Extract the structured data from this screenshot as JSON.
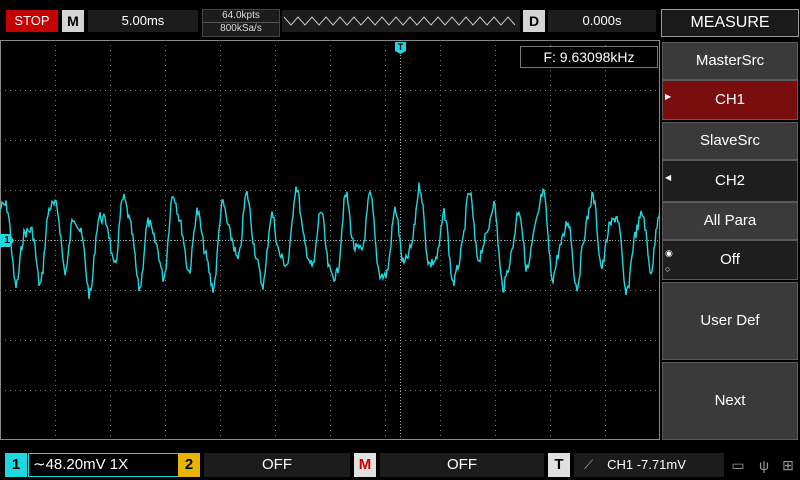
{
  "top": {
    "run_state": "STOP",
    "m_label": "M",
    "timebase": "5.00ms",
    "memory_depth": "64.0kpts",
    "sample_rate": "800kSa/s",
    "d_label": "D",
    "delay": "0.000s",
    "menu_title": "MEASURE"
  },
  "measurement": {
    "frequency": "F: 9.63098kHz"
  },
  "markers": {
    "ch1": "1",
    "trigger": "T"
  },
  "softkeys": {
    "master_src_label": "MasterSrc",
    "master_src_value": "CH1",
    "slave_src_label": "SlaveSrc",
    "slave_src_value": "CH2",
    "all_para_label": "All Para",
    "all_para_value": "Off",
    "user_def_label": "User Def",
    "next_label": "Next"
  },
  "bottom": {
    "ch1_num": "1",
    "ch1_info": "∼48.20mV  1X",
    "ch2_num": "2",
    "ch2_info": "OFF",
    "math_num": "M",
    "math_info": "OFF",
    "trigger_num": "T",
    "trigger_info": "CH1 -7.71mV"
  },
  "icons": [
    "usb-drive-icon",
    "usb-icon",
    "network-icon"
  ],
  "colors": {
    "ch1": "#1ed8e0",
    "ch2": "#e8b400",
    "stop": "#c40000",
    "selected_softkey": "#7a0e0e"
  }
}
